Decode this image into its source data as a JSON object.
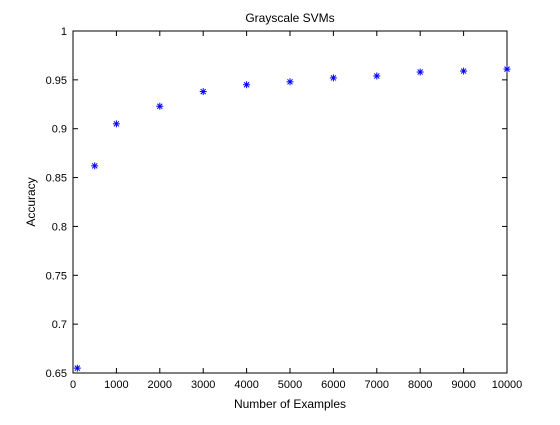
{
  "chart_data": {
    "type": "scatter",
    "title": "Grayscale SVMs",
    "xlabel": "Number of Examples",
    "ylabel": "Accuracy",
    "xlim": [
      0,
      10000
    ],
    "ylim": [
      0.65,
      1
    ],
    "x_ticks": [
      "0",
      "1000",
      "2000",
      "3000",
      "4000",
      "5000",
      "6000",
      "7000",
      "8000",
      "9000",
      "10000"
    ],
    "y_ticks": [
      "0.65",
      "0.7",
      "0.75",
      "0.8",
      "0.85",
      "0.9",
      "0.95",
      "1"
    ],
    "grid": false,
    "marker": "asterisk",
    "marker_color": "#0000ff",
    "series": [
      {
        "x": [
          100,
          500,
          1000,
          2000,
          3000,
          4000,
          5000,
          6000,
          7000,
          8000,
          9000,
          10000
        ],
        "y": [
          0.655,
          0.862,
          0.905,
          0.923,
          0.938,
          0.945,
          0.948,
          0.952,
          0.954,
          0.958,
          0.959,
          0.961
        ]
      }
    ]
  }
}
